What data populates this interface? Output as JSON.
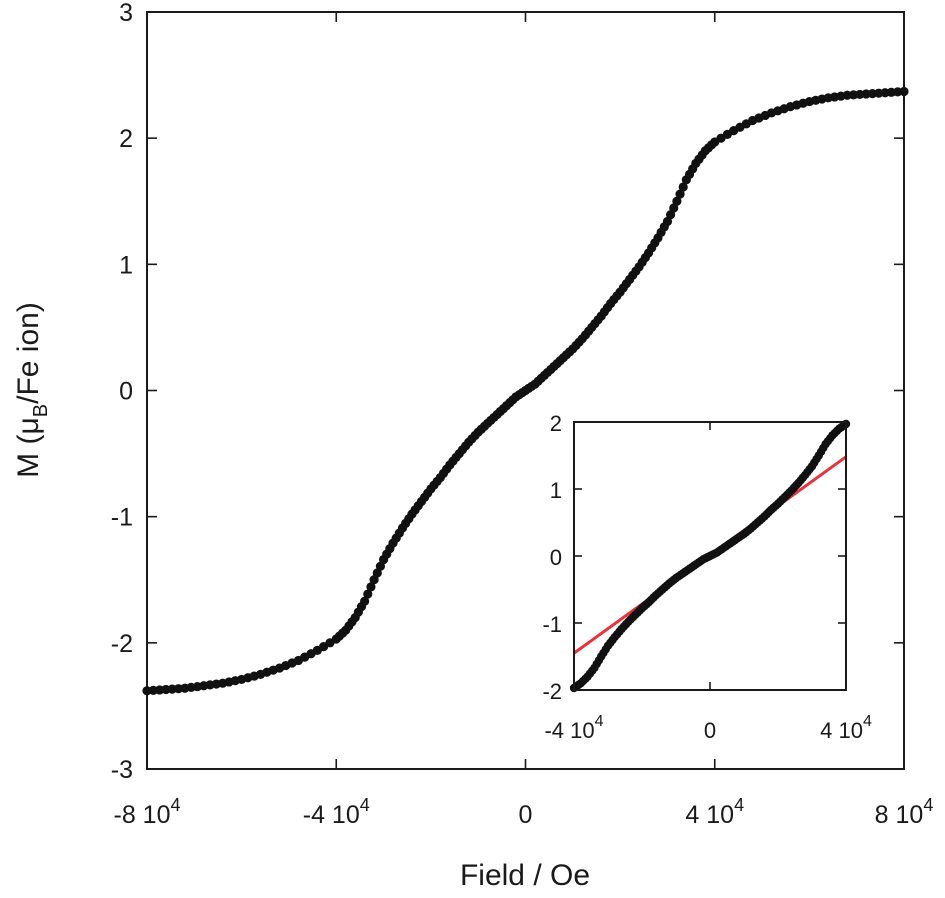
{
  "chart_data": [
    {
      "type": "scatter",
      "panel": "main",
      "xlabel": "Field / Oe",
      "ylabel": "M (μ",
      "ylabel_sub": "B",
      "ylabel_tail": "/Fe ion)",
      "xlim": [
        -80000,
        80000
      ],
      "ylim": [
        -3,
        3
      ],
      "x_ticks": [
        {
          "value": -80000,
          "mantissa": "-8 10",
          "exp": "4"
        },
        {
          "value": -40000,
          "mantissa": "-4 10",
          "exp": "4"
        },
        {
          "value": 0,
          "mantissa": "0",
          "exp": ""
        },
        {
          "value": 40000,
          "mantissa": "4 10",
          "exp": "4"
        },
        {
          "value": 80000,
          "mantissa": "8 10",
          "exp": "4"
        }
      ],
      "y_ticks": [
        {
          "value": 3,
          "label": "3"
        },
        {
          "value": 2,
          "label": "2"
        },
        {
          "value": 1,
          "label": "1"
        },
        {
          "value": 0,
          "label": "0"
        },
        {
          "value": -1,
          "label": "-1"
        },
        {
          "value": -2,
          "label": "-2"
        },
        {
          "value": -3,
          "label": "-3"
        }
      ],
      "grid": false,
      "legend": "none",
      "series": [
        {
          "marker_color": "#111111",
          "points": [
            [
              -80000,
              -2.38
            ],
            [
              -76000,
              -2.37
            ],
            [
              -72000,
              -2.36
            ],
            [
              -68000,
              -2.34
            ],
            [
              -64000,
              -2.32
            ],
            [
              -60000,
              -2.29
            ],
            [
              -56000,
              -2.25
            ],
            [
              -52000,
              -2.2
            ],
            [
              -48000,
              -2.14
            ],
            [
              -44000,
              -2.06
            ],
            [
              -40000,
              -1.97
            ],
            [
              -38000,
              -1.9
            ],
            [
              -36000,
              -1.8
            ],
            [
              -34000,
              -1.67
            ],
            [
              -32000,
              -1.5
            ],
            [
              -30000,
              -1.34
            ],
            [
              -28000,
              -1.21
            ],
            [
              -26000,
              -1.09
            ],
            [
              -24000,
              -0.98
            ],
            [
              -22000,
              -0.88
            ],
            [
              -20000,
              -0.78
            ],
            [
              -18000,
              -0.69
            ],
            [
              -16000,
              -0.59
            ],
            [
              -14000,
              -0.5
            ],
            [
              -12000,
              -0.41
            ],
            [
              -10000,
              -0.33
            ],
            [
              -8000,
              -0.26
            ],
            [
              -6000,
              -0.19
            ],
            [
              -4000,
              -0.12
            ],
            [
              -2000,
              -0.05
            ],
            [
              0,
              0.0
            ],
            [
              2000,
              0.05
            ],
            [
              4000,
              0.12
            ],
            [
              6000,
              0.19
            ],
            [
              8000,
              0.26
            ],
            [
              10000,
              0.33
            ],
            [
              12000,
              0.41
            ],
            [
              14000,
              0.5
            ],
            [
              16000,
              0.59
            ],
            [
              18000,
              0.69
            ],
            [
              20000,
              0.78
            ],
            [
              22000,
              0.88
            ],
            [
              24000,
              0.98
            ],
            [
              26000,
              1.09
            ],
            [
              28000,
              1.21
            ],
            [
              30000,
              1.34
            ],
            [
              32000,
              1.5
            ],
            [
              34000,
              1.67
            ],
            [
              36000,
              1.8
            ],
            [
              38000,
              1.9
            ],
            [
              40000,
              1.97
            ],
            [
              44000,
              2.06
            ],
            [
              48000,
              2.14
            ],
            [
              52000,
              2.2
            ],
            [
              56000,
              2.25
            ],
            [
              60000,
              2.29
            ],
            [
              64000,
              2.32
            ],
            [
              68000,
              2.34
            ],
            [
              72000,
              2.35
            ],
            [
              76000,
              2.36
            ],
            [
              80000,
              2.37
            ]
          ]
        }
      ]
    },
    {
      "type": "scatter",
      "panel": "inset",
      "xlim": [
        -40000,
        40000
      ],
      "ylim": [
        -2,
        2
      ],
      "x_ticks": [
        {
          "value": -40000,
          "mantissa": "-4 10",
          "exp": "4"
        },
        {
          "value": 0,
          "mantissa": "0",
          "exp": ""
        },
        {
          "value": 40000,
          "mantissa": "4 10",
          "exp": "4"
        }
      ],
      "y_ticks": [
        {
          "value": 2,
          "label": "2"
        },
        {
          "value": 1,
          "label": "1"
        },
        {
          "value": 0,
          "label": "0"
        },
        {
          "value": -1,
          "label": "-1"
        },
        {
          "value": -2,
          "label": "-2"
        }
      ],
      "grid": false,
      "legend": "none",
      "series": [
        {
          "marker_color": "#111111",
          "points": [
            [
              -40000,
              -1.97
            ],
            [
              -38000,
              -1.9
            ],
            [
              -36000,
              -1.8
            ],
            [
              -34000,
              -1.67
            ],
            [
              -32000,
              -1.5
            ],
            [
              -30000,
              -1.34
            ],
            [
              -28000,
              -1.21
            ],
            [
              -26000,
              -1.09
            ],
            [
              -24000,
              -0.98
            ],
            [
              -22000,
              -0.88
            ],
            [
              -20000,
              -0.78
            ],
            [
              -18000,
              -0.69
            ],
            [
              -16000,
              -0.59
            ],
            [
              -14000,
              -0.5
            ],
            [
              -12000,
              -0.41
            ],
            [
              -10000,
              -0.33
            ],
            [
              -8000,
              -0.26
            ],
            [
              -6000,
              -0.19
            ],
            [
              -4000,
              -0.12
            ],
            [
              -2000,
              -0.05
            ],
            [
              0,
              0.0
            ],
            [
              2000,
              0.05
            ],
            [
              4000,
              0.12
            ],
            [
              6000,
              0.19
            ],
            [
              8000,
              0.26
            ],
            [
              10000,
              0.33
            ],
            [
              12000,
              0.41
            ],
            [
              14000,
              0.5
            ],
            [
              16000,
              0.59
            ],
            [
              18000,
              0.69
            ],
            [
              20000,
              0.78
            ],
            [
              22000,
              0.88
            ],
            [
              24000,
              0.98
            ],
            [
              26000,
              1.09
            ],
            [
              28000,
              1.21
            ],
            [
              30000,
              1.34
            ],
            [
              32000,
              1.5
            ],
            [
              34000,
              1.67
            ],
            [
              36000,
              1.8
            ],
            [
              38000,
              1.9
            ],
            [
              40000,
              1.97
            ]
          ]
        }
      ],
      "fit_line": {
        "color": "#e8333a",
        "points": [
          [
            -40000,
            -1.45
          ],
          [
            40000,
            1.48
          ]
        ]
      }
    }
  ]
}
